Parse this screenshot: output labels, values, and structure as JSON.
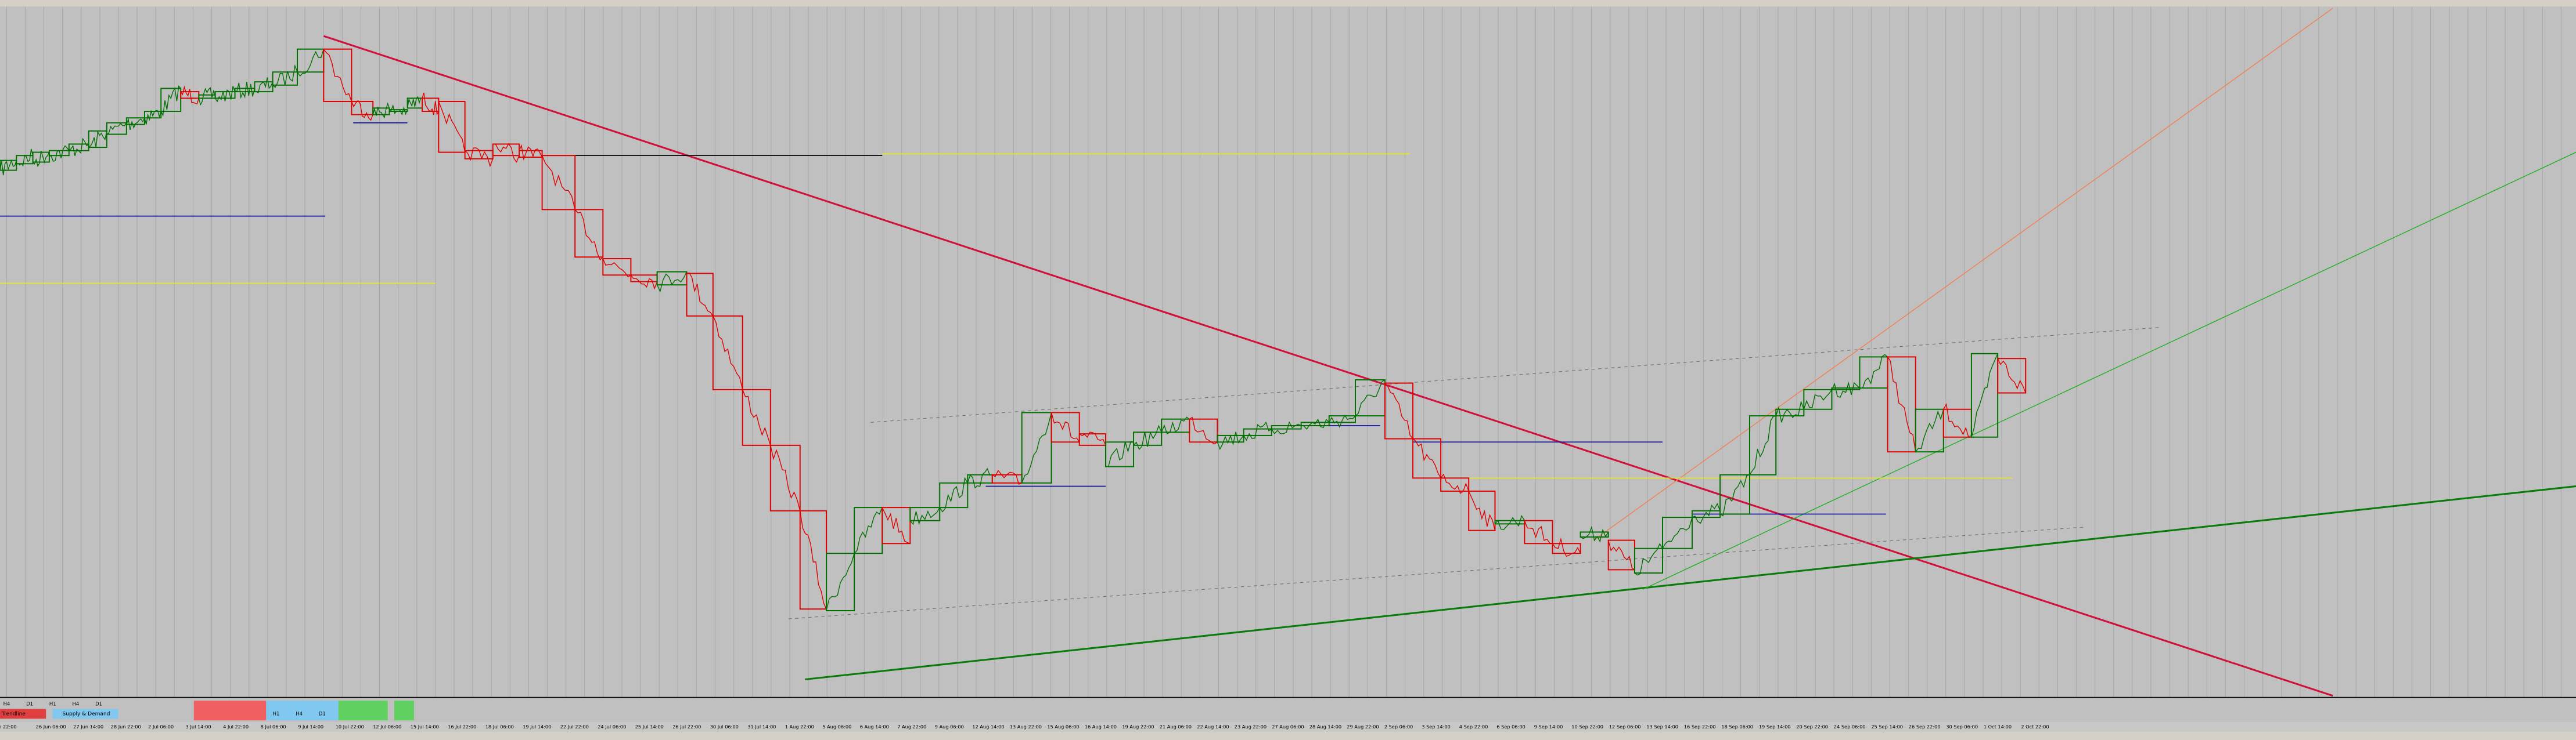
{
  "time_axis": {
    "labels": [
      "n 22:00",
      "26 Jun 06:00",
      "27 Jun 14:00",
      "28 Jun 22:00",
      "2 Jul 06:00",
      "3 Jul 14:00",
      "4 Jul 22:00",
      "8 Jul 06:00",
      "9 Jul 14:00",
      "10 Jul 22:00",
      "12 Jul 06:00",
      "15 Jul 14:00",
      "16 Jul 22:00",
      "18 Jul 06:00",
      "19 Jul 14:00",
      "22 Jul 22:00",
      "24 Jul 06:00",
      "25 Jul 14:00",
      "26 Jul 22:00",
      "30 Jul 06:00",
      "31 Jul 14:00",
      "1 Aug 22:00",
      "5 Aug 06:00",
      "6 Aug 14:00",
      "7 Aug 22:00",
      "9 Aug 06:00",
      "12 Aug 14:00",
      "13 Aug 22:00",
      "15 Aug 06:00",
      "16 Aug 14:00",
      "19 Aug 22:00",
      "21 Aug 06:00",
      "22 Aug 14:00",
      "23 Aug 22:00",
      "27 Aug 06:00",
      "28 Aug 14:00",
      "29 Aug 22:00",
      "2 Sep 06:00",
      "3 Sep 14:00",
      "4 Sep 22:00",
      "6 Sep 06:00",
      "9 Sep 14:00",
      "10 Sep 22:00",
      "12 Sep 06:00",
      "13 Sep 14:00",
      "16 Sep 22:00",
      "18 Sep 06:00",
      "19 Sep 14:00",
      "20 Sep 22:00",
      "24 Sep 06:00",
      "25 Sep 14:00",
      "26 Sep 22:00",
      "30 Sep 06:00",
      "1 Oct 14:00",
      "2 Oct 22:00"
    ]
  },
  "panel": {
    "timeframes_a": [
      "H4",
      "D1",
      "H1",
      "H4",
      "D1"
    ],
    "trendline": "Trendline",
    "supply_demand": "Supply & Demand",
    "timeframes_b": [
      "H1",
      "H4",
      "D1"
    ]
  }
}
